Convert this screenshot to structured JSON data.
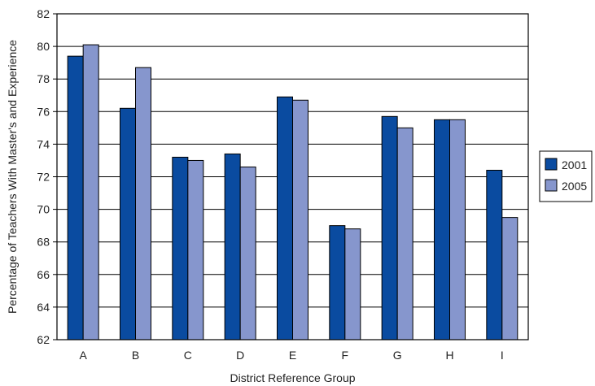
{
  "chart_data": {
    "type": "bar",
    "title": "",
    "xlabel": "District Reference Group",
    "ylabel": "Percentage of Teachers With Master's and Experience",
    "ylim": [
      62,
      82
    ],
    "yticks": [
      62,
      64,
      66,
      68,
      70,
      72,
      74,
      76,
      78,
      80,
      82
    ],
    "grid": true,
    "legend_position": "right",
    "categories": [
      "A",
      "B",
      "C",
      "D",
      "E",
      "F",
      "G",
      "H",
      "I"
    ],
    "series": [
      {
        "name": "2001",
        "color": "#0a4ba0",
        "values": [
          79.4,
          76.2,
          73.2,
          73.4,
          76.9,
          69.0,
          75.7,
          75.5,
          72.4
        ]
      },
      {
        "name": "2005",
        "color": "#8696cd",
        "values": [
          80.1,
          78.7,
          73.0,
          72.6,
          76.7,
          68.8,
          75.0,
          75.5,
          69.5
        ]
      }
    ]
  }
}
